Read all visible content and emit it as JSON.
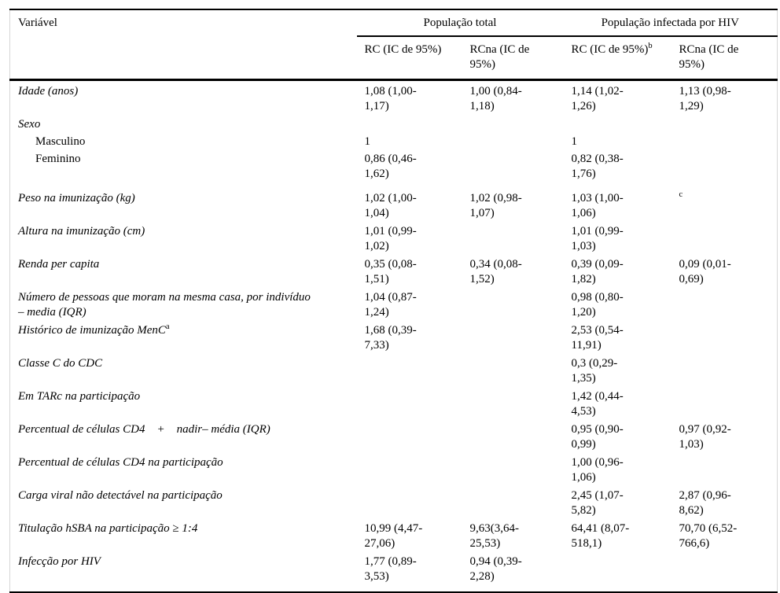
{
  "table": {
    "header": {
      "variable_col": "Variável",
      "group1": "População total",
      "group2": "População infectada por HIV",
      "sub_headers": [
        {
          "label": "RC (IC de 95%)",
          "sup": ""
        },
        {
          "label": "RCna (IC de\n95%)",
          "sup": ""
        },
        {
          "label": "RC (IC de 95%)",
          "sup": "b"
        },
        {
          "label": "RCna (IC de\n95%)",
          "sup": ""
        }
      ]
    },
    "rows": [
      {
        "label": "Idade (anos)",
        "italic": true,
        "indent": false,
        "label_sup": "",
        "values": [
          "1,08 (1,00-\n1,17)",
          "1,00 (0,84-\n1,18)",
          "1,14 (1,02-\n1,26)",
          "1,13 (0,98-\n1,29)"
        ],
        "sup_cells": []
      },
      {
        "label": "Sexo",
        "italic": true,
        "indent": false,
        "label_sup": "",
        "values": [
          "",
          "",
          "",
          ""
        ],
        "sup_cells": []
      },
      {
        "label": "Masculino",
        "italic": false,
        "indent": true,
        "label_sup": "",
        "values": [
          "1",
          "",
          "1",
          ""
        ],
        "sup_cells": []
      },
      {
        "label": "Feminino",
        "italic": false,
        "indent": true,
        "label_sup": "",
        "values": [
          "0,86 (0,46-\n1,62)",
          "",
          "0,82 (0,38-\n1,76)",
          ""
        ],
        "sup_cells": []
      },
      {
        "label": "Peso na imunização (kg)",
        "italic": true,
        "indent": false,
        "label_sup": "",
        "values": [
          "1,02 (1,00-\n1,04)",
          "1,02 (0,98-\n1,07)",
          "1,03 (1,00-\n1,06)",
          "c"
        ],
        "sup_cells": [
          3
        ]
      },
      {
        "label": "Altura na imunização (cm)",
        "italic": true,
        "indent": false,
        "label_sup": "",
        "values": [
          "1,01 (0,99-\n1,02)",
          "",
          "1,01 (0,99-\n1,03)",
          ""
        ],
        "sup_cells": []
      },
      {
        "label": "Renda per capita",
        "italic": true,
        "indent": false,
        "label_sup": "",
        "values": [
          "0,35 (0,08-\n1,51)",
          "0,34 (0,08-\n1,52)",
          "0,39 (0,09-\n1,82)",
          "0,09 (0,01-\n0,69)"
        ],
        "sup_cells": []
      },
      {
        "label": "Número de pessoas que moram na mesma casa, por indivíduo\n– media (IQR)",
        "italic": true,
        "indent": false,
        "label_sup": "",
        "values": [
          "1,04 (0,87-\n1,24)",
          "",
          "0,98 (0,80-\n1,20)",
          ""
        ],
        "sup_cells": []
      },
      {
        "label": "Histórico de imunização MenC",
        "italic": true,
        "indent": false,
        "label_sup": "a",
        "values": [
          "1,68 (0,39-\n7,33)",
          "",
          "2,53 (0,54-\n11,91)",
          ""
        ],
        "sup_cells": []
      },
      {
        "label": "Classe C do CDC",
        "italic": true,
        "indent": false,
        "label_sup": "",
        "values": [
          "",
          "",
          "0,3 (0,29-\n1,35)",
          ""
        ],
        "sup_cells": []
      },
      {
        "label": "Em TARc na participação",
        "italic": true,
        "indent": false,
        "label_sup": "",
        "values": [
          "",
          "",
          "1,42 (0,44-\n4,53)",
          ""
        ],
        "sup_cells": []
      },
      {
        "label": "Percentual de células CD4    +    nadir– média (IQR)",
        "italic": true,
        "indent": false,
        "label_sup": "",
        "values": [
          "",
          "",
          "0,95 (0,90-\n0,99)",
          "0,97 (0,92-\n1,03)"
        ],
        "sup_cells": []
      },
      {
        "label": "Percentual de células CD4 na participação",
        "italic": true,
        "indent": false,
        "label_sup": "",
        "values": [
          "",
          "",
          "1,00 (0,96-\n1,06)",
          ""
        ],
        "sup_cells": []
      },
      {
        "label": "Carga viral não detectável na participação",
        "italic": true,
        "indent": false,
        "label_sup": "",
        "values": [
          "",
          "",
          "2,45 (1,07-\n5,82)",
          "2,87 (0,96-\n8,62)"
        ],
        "sup_cells": []
      },
      {
        "label": "Titulação hSBA na participação ≥ 1:4",
        "italic": true,
        "indent": false,
        "label_sup": "",
        "values": [
          "10,99 (4,47-\n27,06)",
          "9,63(3,64-\n25,53)",
          "64,41 (8,07-\n518,1)",
          "70,70 (6,52-\n766,6)"
        ],
        "sup_cells": []
      },
      {
        "label": "Infecção por HIV",
        "italic": true,
        "indent": false,
        "label_sup": "",
        "values": [
          "1,77 (0,89-\n3,53)",
          "0,94 (0,39-\n2,28)",
          "",
          ""
        ],
        "sup_cells": []
      }
    ]
  }
}
